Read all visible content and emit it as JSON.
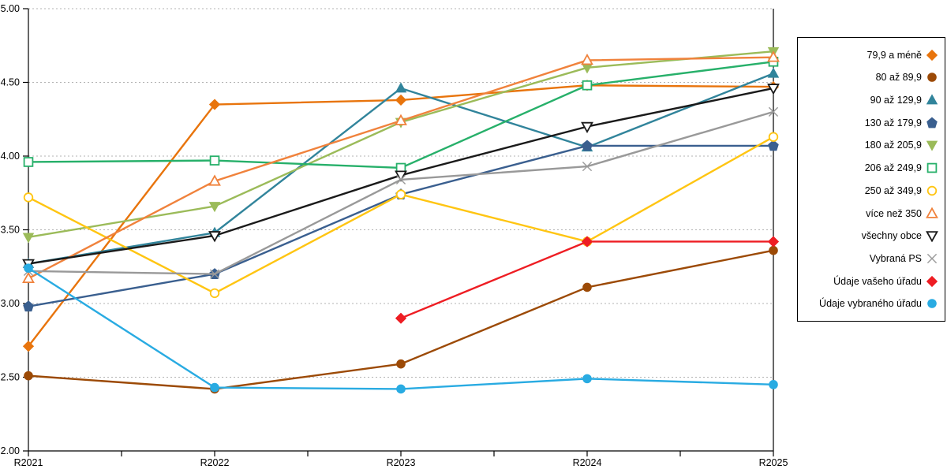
{
  "chart_data": {
    "type": "line",
    "title": "",
    "xlabel": "",
    "ylabel": "",
    "categories": [
      "R2021",
      "R2022",
      "R2023",
      "R2024",
      "R2025"
    ],
    "ylim": [
      2.0,
      5.0
    ],
    "ytick_step": 0.5,
    "ytick_labels": [
      "5.00",
      "4.50",
      "4.00",
      "3.50",
      "3.00",
      "2.50",
      "2.00"
    ],
    "grid": "horizontal-dotted",
    "legend_position": "right-outside-boxed",
    "axis_color": "#000000",
    "grid_color": "#b3b3b3",
    "series": [
      {
        "name": "79,9 a méně",
        "color": "#e8740c",
        "marker": "diamond",
        "filled": true,
        "values": [
          2.71,
          4.35,
          4.38,
          4.48,
          4.47
        ]
      },
      {
        "name": "80 až 89,9",
        "color": "#9c4a06",
        "marker": "circle",
        "filled": true,
        "values": [
          2.51,
          2.42,
          2.59,
          3.11,
          3.36
        ]
      },
      {
        "name": "90 až 129,9",
        "color": "#31849b",
        "marker": "triangle-up",
        "filled": true,
        "values": [
          3.27,
          3.48,
          4.46,
          4.06,
          4.56
        ]
      },
      {
        "name": "130 až 179,9",
        "color": "#3a5f8f",
        "marker": "pentagon",
        "filled": true,
        "values": [
          2.98,
          3.2,
          3.74,
          4.07,
          4.07
        ]
      },
      {
        "name": "180 až 205,9",
        "color": "#9bbb59",
        "marker": "triangle-down",
        "filled": true,
        "values": [
          3.45,
          3.66,
          4.23,
          4.6,
          4.71
        ]
      },
      {
        "name": "206 až 249,9",
        "color": "#27b06a",
        "marker": "square",
        "filled": false,
        "values": [
          3.96,
          3.97,
          3.92,
          4.48,
          4.64
        ]
      },
      {
        "name": "250 až 349,9",
        "color": "#ffc512",
        "marker": "circle",
        "filled": false,
        "values": [
          3.72,
          3.07,
          3.74,
          3.42,
          4.13
        ]
      },
      {
        "name": "více než 350",
        "color": "#f0823c",
        "marker": "triangle-up",
        "filled": false,
        "values": [
          3.17,
          3.83,
          4.24,
          4.65,
          4.67
        ]
      },
      {
        "name": "všechny obce",
        "color": "#1a1a1a",
        "marker": "triangle-down",
        "filled": false,
        "values": [
          3.27,
          3.46,
          3.87,
          4.2,
          4.46
        ]
      },
      {
        "name": "Vybraná PS",
        "color": "#999999",
        "marker": "x",
        "filled": false,
        "values": [
          3.22,
          3.2,
          3.84,
          3.93,
          4.3
        ]
      },
      {
        "name": "Údaje vašeho úřadu",
        "color": "#ee1d23",
        "marker": "diamond",
        "filled": true,
        "values": [
          null,
          null,
          2.9,
          3.42,
          3.42
        ]
      },
      {
        "name": "Údaje vybraného úřadu",
        "color": "#29abe2",
        "marker": "circle",
        "filled": true,
        "values": [
          3.24,
          2.43,
          2.42,
          2.49,
          2.45
        ]
      }
    ]
  }
}
